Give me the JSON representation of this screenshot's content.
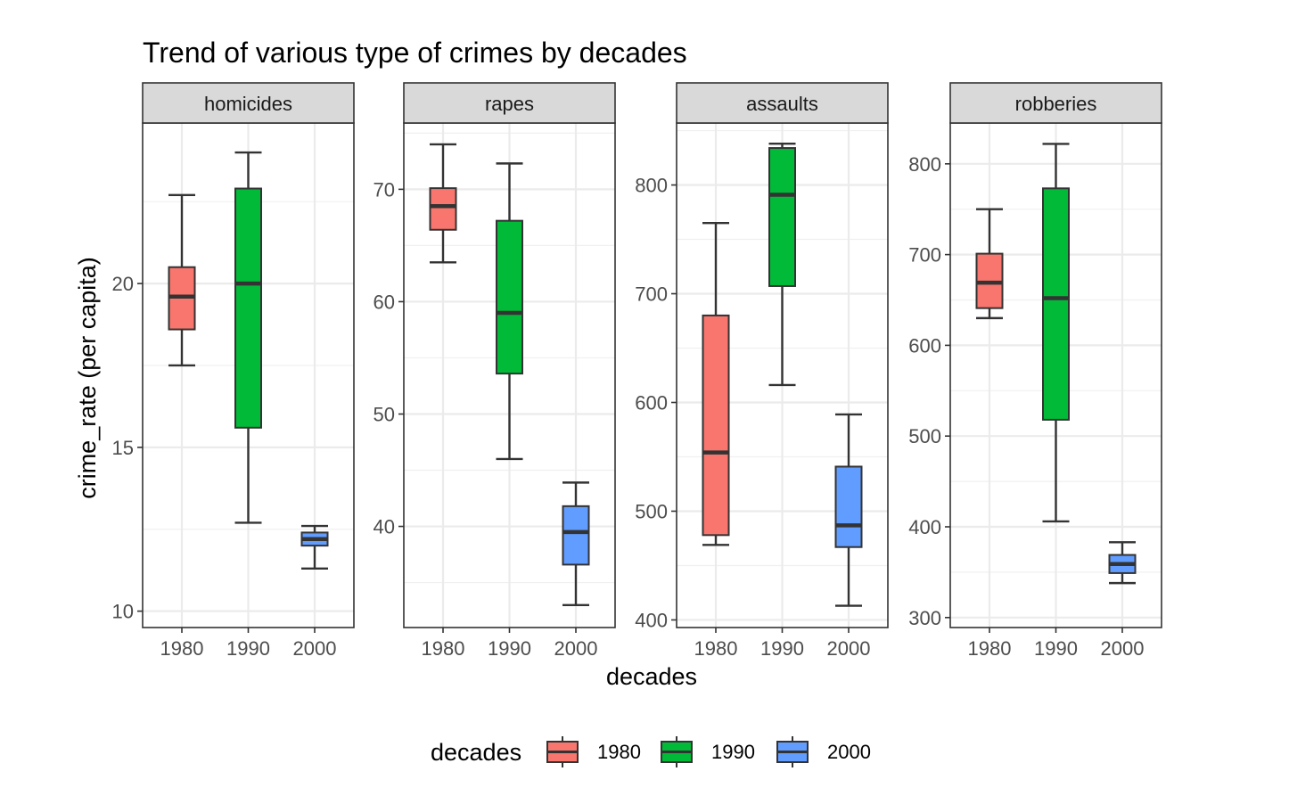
{
  "chart_data": {
    "type": "box",
    "title": "Trend of various type of crimes by decades",
    "xlabel": "decades",
    "ylabel": "crime_rate (per capita)",
    "categories": [
      "1980",
      "1990",
      "2000"
    ],
    "colors": {
      "1980": "#F8766D",
      "1990": "#00BA38",
      "2000": "#619CFF"
    },
    "grid": true,
    "legend": {
      "title": "decades",
      "position": "bottom",
      "items": [
        "1980",
        "1990",
        "2000"
      ]
    },
    "panels": [
      {
        "name": "homicides",
        "ylim": [
          9.5,
          24.9
        ],
        "yticks": [
          10,
          15,
          20
        ],
        "yticklabels": [
          "10",
          "15",
          "20"
        ],
        "boxes": [
          {
            "category": "1980",
            "min": 17.5,
            "q1": 18.6,
            "median": 19.6,
            "q3": 20.5,
            "max": 22.7
          },
          {
            "category": "1990",
            "min": 12.7,
            "q1": 15.6,
            "median": 20.0,
            "q3": 22.9,
            "max": 24.0
          },
          {
            "category": "2000",
            "min": 11.3,
            "q1": 12.0,
            "median": 12.2,
            "q3": 12.4,
            "max": 12.6
          }
        ]
      },
      {
        "name": "rapes",
        "ylim": [
          31.0,
          75.9
        ],
        "yticks": [
          40,
          50,
          60,
          70
        ],
        "yticklabels": [
          "40",
          "50",
          "60",
          "70"
        ],
        "boxes": [
          {
            "category": "1980",
            "min": 63.5,
            "q1": 66.4,
            "median": 68.5,
            "q3": 70.1,
            "max": 74.0
          },
          {
            "category": "1990",
            "min": 46.0,
            "q1": 53.6,
            "median": 59.0,
            "q3": 67.2,
            "max": 72.3
          },
          {
            "category": "2000",
            "min": 33.0,
            "q1": 36.6,
            "median": 39.5,
            "q3": 41.8,
            "max": 43.9
          }
        ]
      },
      {
        "name": "assaults",
        "ylim": [
          393,
          857
        ],
        "yticks": [
          400,
          500,
          600,
          700,
          800
        ],
        "yticklabels": [
          "400",
          "500",
          "600",
          "700",
          "800"
        ],
        "boxes": [
          {
            "category": "1980",
            "min": 469,
            "q1": 478,
            "median": 554,
            "q3": 680,
            "max": 765
          },
          {
            "category": "1990",
            "min": 616,
            "q1": 707,
            "median": 791,
            "q3": 834,
            "max": 838
          },
          {
            "category": "2000",
            "min": 413,
            "q1": 467,
            "median": 487,
            "q3": 541,
            "max": 589
          }
        ]
      },
      {
        "name": "robberies",
        "ylim": [
          289,
          845
        ],
        "yticks": [
          300,
          400,
          500,
          600,
          700,
          800
        ],
        "yticklabels": [
          "300",
          "400",
          "500",
          "600",
          "700",
          "800"
        ],
        "boxes": [
          {
            "category": "1980",
            "min": 630,
            "q1": 641,
            "median": 669,
            "q3": 701,
            "max": 750
          },
          {
            "category": "1990",
            "min": 406,
            "q1": 518,
            "median": 652,
            "q3": 773,
            "max": 822
          },
          {
            "category": "2000",
            "min": 338,
            "q1": 349,
            "median": 359,
            "q3": 369,
            "max": 383
          }
        ]
      }
    ]
  }
}
